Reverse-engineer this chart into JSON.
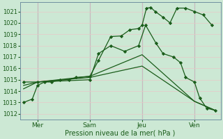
{
  "background_color": "#cce8d4",
  "grid_color": "#e8c8c8",
  "line_color": "#1a5c1a",
  "marker_color": "#1a5c1a",
  "xlabel": "Pression niveau de la mer( hPa )",
  "ylim": [
    1011.5,
    1021.8
  ],
  "yticks": [
    1012,
    1013,
    1014,
    1015,
    1016,
    1017,
    1018,
    1019,
    1020,
    1021
  ],
  "xlim": [
    -1.0,
    10.5
  ],
  "xtick_positions": [
    0,
    3,
    6,
    9
  ],
  "xtick_labels": [
    "Mer",
    "Sam",
    "Jeu",
    "Ven"
  ],
  "vline_positions": [
    0,
    3,
    6,
    9
  ],
  "series": [
    {
      "x": [
        -0.8,
        -0.3,
        0.0,
        0.4,
        0.8,
        1.3,
        1.8,
        2.2,
        3.0,
        3.5,
        4.2,
        4.8,
        5.3,
        5.8,
        6.0,
        6.25,
        6.5,
        6.75,
        7.2,
        7.6,
        8.0,
        8.5,
        9.0,
        9.5,
        10.0
      ],
      "y": [
        1013.0,
        1013.3,
        1014.5,
        1014.8,
        1014.8,
        1015.0,
        1015.0,
        1015.2,
        1015.3,
        1016.7,
        1018.8,
        1018.85,
        1019.4,
        1019.5,
        1019.8,
        1021.3,
        1021.35,
        1021.0,
        1020.5,
        1020.0,
        1021.3,
        1021.3,
        1021.0,
        1020.7,
        1019.8
      ],
      "marker": true
    },
    {
      "x": [
        -0.8,
        0.0,
        3.0,
        3.5,
        4.2,
        5.0,
        5.8,
        6.2,
        6.8,
        7.2,
        7.8,
        8.2,
        8.5,
        9.0,
        9.3,
        9.7,
        10.2
      ],
      "y": [
        1014.8,
        1014.8,
        1015.0,
        1017.3,
        1018.0,
        1017.5,
        1018.0,
        1019.8,
        1018.2,
        1017.3,
        1017.0,
        1016.5,
        1015.2,
        1014.8,
        1013.4,
        1012.5,
        1012.3
      ],
      "marker": true
    },
    {
      "x": [
        -0.8,
        0.0,
        3.0,
        6.0,
        9.0,
        10.2
      ],
      "y": [
        1014.5,
        1014.8,
        1015.3,
        1017.2,
        1013.1,
        1012.3
      ],
      "marker": false
    },
    {
      "x": [
        -0.8,
        0.0,
        3.0,
        6.0,
        9.0,
        10.2
      ],
      "y": [
        1014.2,
        1014.8,
        1015.2,
        1016.2,
        1013.1,
        1012.3
      ],
      "marker": false
    }
  ]
}
